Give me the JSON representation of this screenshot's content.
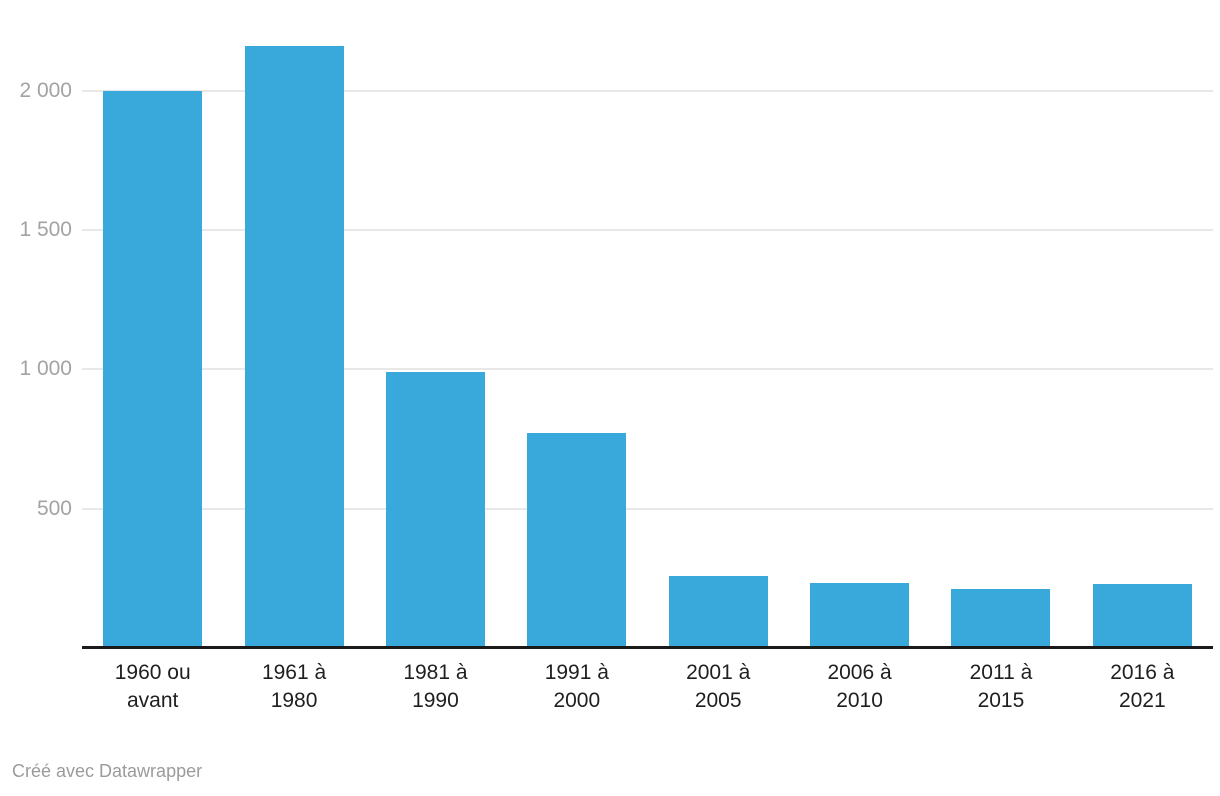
{
  "chart_data": {
    "type": "bar",
    "categories": [
      [
        "1960 ou",
        "avant"
      ],
      [
        "1961 à",
        "1980"
      ],
      [
        "1981 à",
        "1990"
      ],
      [
        "1991 à",
        "2000"
      ],
      [
        "2001 à",
        "2005"
      ],
      [
        "2006 à",
        "2010"
      ],
      [
        "2011 à",
        "2015"
      ],
      [
        "2016 à",
        "2021"
      ]
    ],
    "values": [
      2000,
      2160,
      990,
      770,
      260,
      235,
      210,
      230
    ],
    "title": "",
    "xlabel": "",
    "ylabel": "",
    "ylim": [
      0,
      2325
    ],
    "grid": true,
    "legend": false,
    "yticks": [
      {
        "value": 500,
        "label": "500"
      },
      {
        "value": 1000,
        "label": "1 000"
      },
      {
        "value": 1500,
        "label": "1 500"
      },
      {
        "value": 2000,
        "label": "2 000"
      }
    ],
    "colors": {
      "bar": "#39a9dc",
      "grid": "#e8e8e8",
      "axis": "#1a1a1a",
      "tick_label": "#a3a3a3",
      "x_label": "#1f1f1f",
      "footer": "#9b9b9b"
    }
  },
  "footer": {
    "attribution": "Créé avec Datawrapper"
  }
}
